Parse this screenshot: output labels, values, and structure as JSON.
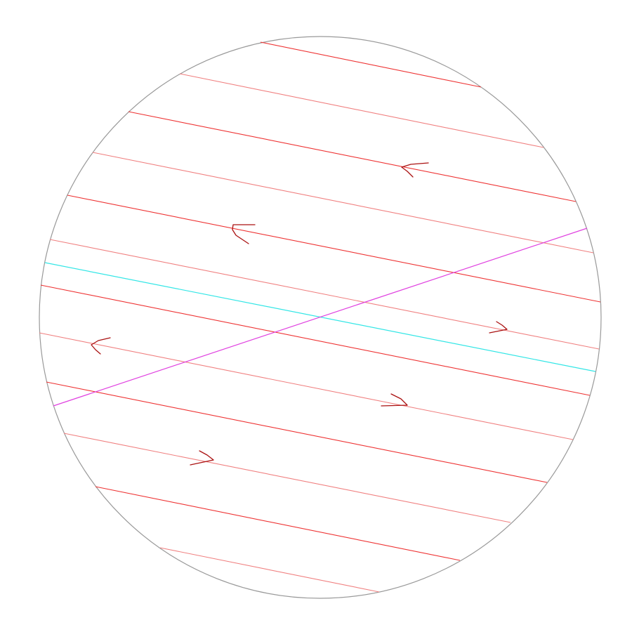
{
  "diagram": {
    "type": "field-lines-in-disk",
    "colors": {
      "background": "#ffffff",
      "boundary": "#999999",
      "field_line": "#ee3333",
      "field_line_light": "#f08080",
      "arrow": "#aa1111",
      "reference_line": "#33e6e6",
      "transversal": "#e040e0"
    },
    "field_line_count": 13,
    "arrow_directions": [
      "left",
      "left",
      "right",
      "left",
      "right",
      "right"
    ]
  }
}
